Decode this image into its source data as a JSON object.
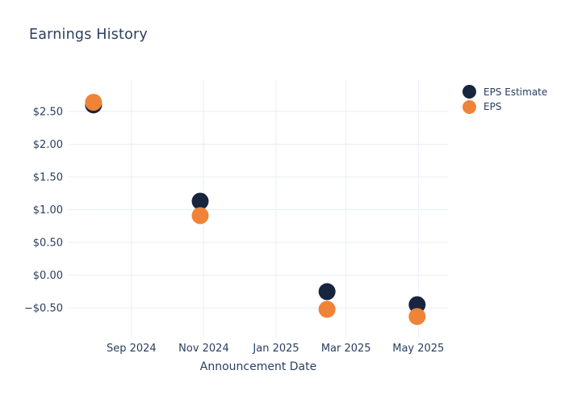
{
  "title": "Earnings History",
  "colors": {
    "background": "#ffffff",
    "text": "#2a3f5f",
    "grid": "#e9eef6",
    "eps_estimate": "#17253f",
    "eps_actual": "#ef8337"
  },
  "chart_data": {
    "type": "scatter",
    "title": "Earnings History",
    "xlabel": "Announcement Date",
    "ylabel": "",
    "x": [
      "2024-07-31",
      "2024-10-29",
      "2025-02-13",
      "2025-04-30"
    ],
    "series": [
      {
        "name": "EPS Estimate",
        "color": "#17253f",
        "values": [
          2.6,
          1.13,
          -0.25,
          -0.45
        ]
      },
      {
        "name": "EPS",
        "color": "#ef8337",
        "values": [
          2.64,
          0.91,
          -0.52,
          -0.63
        ]
      }
    ],
    "x_ticks": [
      {
        "date": "2024-09-01",
        "label": "Sep 2024"
      },
      {
        "date": "2024-11-01",
        "label": "Nov 2024"
      },
      {
        "date": "2025-01-01",
        "label": "Jan 2025"
      },
      {
        "date": "2025-03-01",
        "label": "Mar 2025"
      },
      {
        "date": "2025-05-01",
        "label": "May 2025"
      }
    ],
    "y_ticks": [
      {
        "value": 2.5,
        "label": "$2.50"
      },
      {
        "value": 2.0,
        "label": "$2.00"
      },
      {
        "value": 1.5,
        "label": "$1.50"
      },
      {
        "value": 1.0,
        "label": "$1.00"
      },
      {
        "value": 0.5,
        "label": "$0.50"
      },
      {
        "value": 0.0,
        "label": "$0.00"
      },
      {
        "value": -0.5,
        "label": "−$0.50"
      }
    ],
    "xlim": [
      "2024-07-10",
      "2025-05-26"
    ],
    "ylim": [
      -0.88,
      2.98
    ],
    "grid": true,
    "legend_position": "top-right",
    "marker_size": 21
  }
}
